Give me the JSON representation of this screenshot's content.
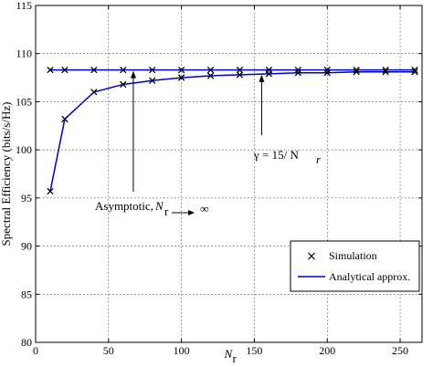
{
  "chart_data": {
    "type": "line",
    "title": "",
    "xlabel": "N",
    "xlabel_sub": "r",
    "ylabel": "Spectral Efficiency (bits/s/Hz)",
    "xlim": [
      0,
      265
    ],
    "ylim": [
      80,
      115
    ],
    "xticks": [
      0,
      50,
      100,
      150,
      200,
      250
    ],
    "yticks": [
      80,
      85,
      90,
      95,
      100,
      105,
      110,
      115
    ],
    "grid": true,
    "legend_position": "bottom-right",
    "legend": [
      {
        "label": "Simulation",
        "marker": "x"
      },
      {
        "label": "Analytical approx.",
        "line": true
      }
    ],
    "colors": {
      "analytical": "#0000cc",
      "simulation": "#000000",
      "grid": "#000000"
    },
    "series": [
      {
        "name": "Simulation",
        "role": "asymptotic",
        "x": [
          10,
          20,
          40,
          60,
          80,
          100,
          120,
          140,
          160,
          180,
          200,
          220,
          240,
          260
        ],
        "y": [
          108.3,
          108.3,
          108.3,
          108.3,
          108.3,
          108.3,
          108.3,
          108.3,
          108.3,
          108.3,
          108.3,
          108.3,
          108.3,
          108.3
        ]
      },
      {
        "name": "Simulation",
        "role": "gamma",
        "x": [
          10,
          20,
          40,
          60,
          80,
          100,
          120,
          140,
          160,
          180,
          200,
          220,
          240,
          260
        ],
        "y": [
          95.7,
          103.2,
          106.0,
          106.8,
          107.2,
          107.5,
          107.7,
          107.8,
          107.9,
          108.0,
          108.0,
          108.1,
          108.1,
          108.1
        ]
      },
      {
        "name": "Analytical approx.",
        "role": "asymptotic",
        "x": [
          10,
          20,
          40,
          60,
          80,
          100,
          120,
          140,
          160,
          180,
          200,
          220,
          240,
          260
        ],
        "y": [
          108.3,
          108.3,
          108.3,
          108.3,
          108.3,
          108.3,
          108.3,
          108.3,
          108.3,
          108.3,
          108.3,
          108.3,
          108.3,
          108.3
        ]
      },
      {
        "name": "Analytical approx.",
        "role": "gamma",
        "x": [
          10,
          20,
          40,
          60,
          80,
          100,
          120,
          140,
          160,
          180,
          200,
          220,
          240,
          260
        ],
        "y": [
          95.7,
          103.2,
          106.0,
          106.8,
          107.2,
          107.5,
          107.7,
          107.8,
          107.9,
          108.0,
          108.0,
          108.1,
          108.1,
          108.1
        ]
      }
    ],
    "annotations": [
      {
        "id": "gamma",
        "text_prefix": "γ = 15/ N",
        "text_sub": "r",
        "arrow_target": [
          155,
          107.9
        ]
      },
      {
        "id": "asymptotic",
        "text_prefix": "Asymptotic,",
        "text_var": "N",
        "text_sub": "r",
        "text_suffix": "∞",
        "arrow_target": [
          67,
          108.3
        ]
      }
    ]
  }
}
